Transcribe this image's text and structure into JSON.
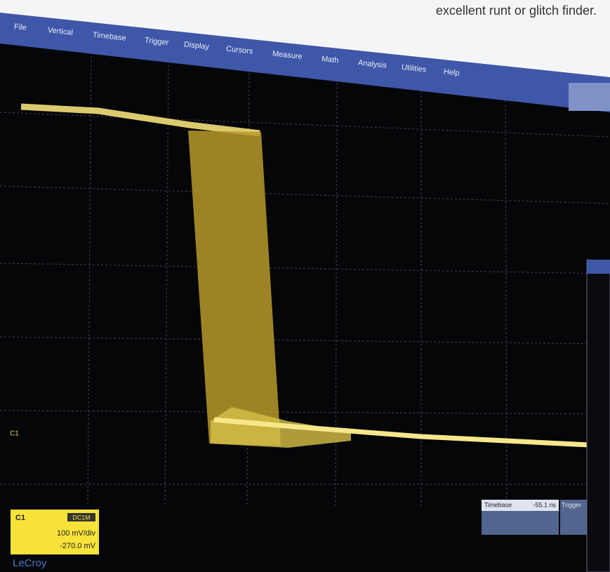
{
  "caption": "excellent runt or glitch finder.",
  "menu": [
    "File",
    "Vertical",
    "Timebase",
    "Trigger",
    "Display",
    "Cursors",
    "Measure",
    "Math",
    "Analysis",
    "Utilities",
    "Help"
  ],
  "channel_box": {
    "channel": "C1",
    "coupling": "DC1M",
    "scale": "100 mV/div",
    "offset": "-270.0 mV"
  },
  "trace_label": "C1",
  "brand": "LeCroy",
  "timebase_box": {
    "label": "Timebase",
    "value": "-55.1 ns",
    "trigger": "Trigger"
  }
}
